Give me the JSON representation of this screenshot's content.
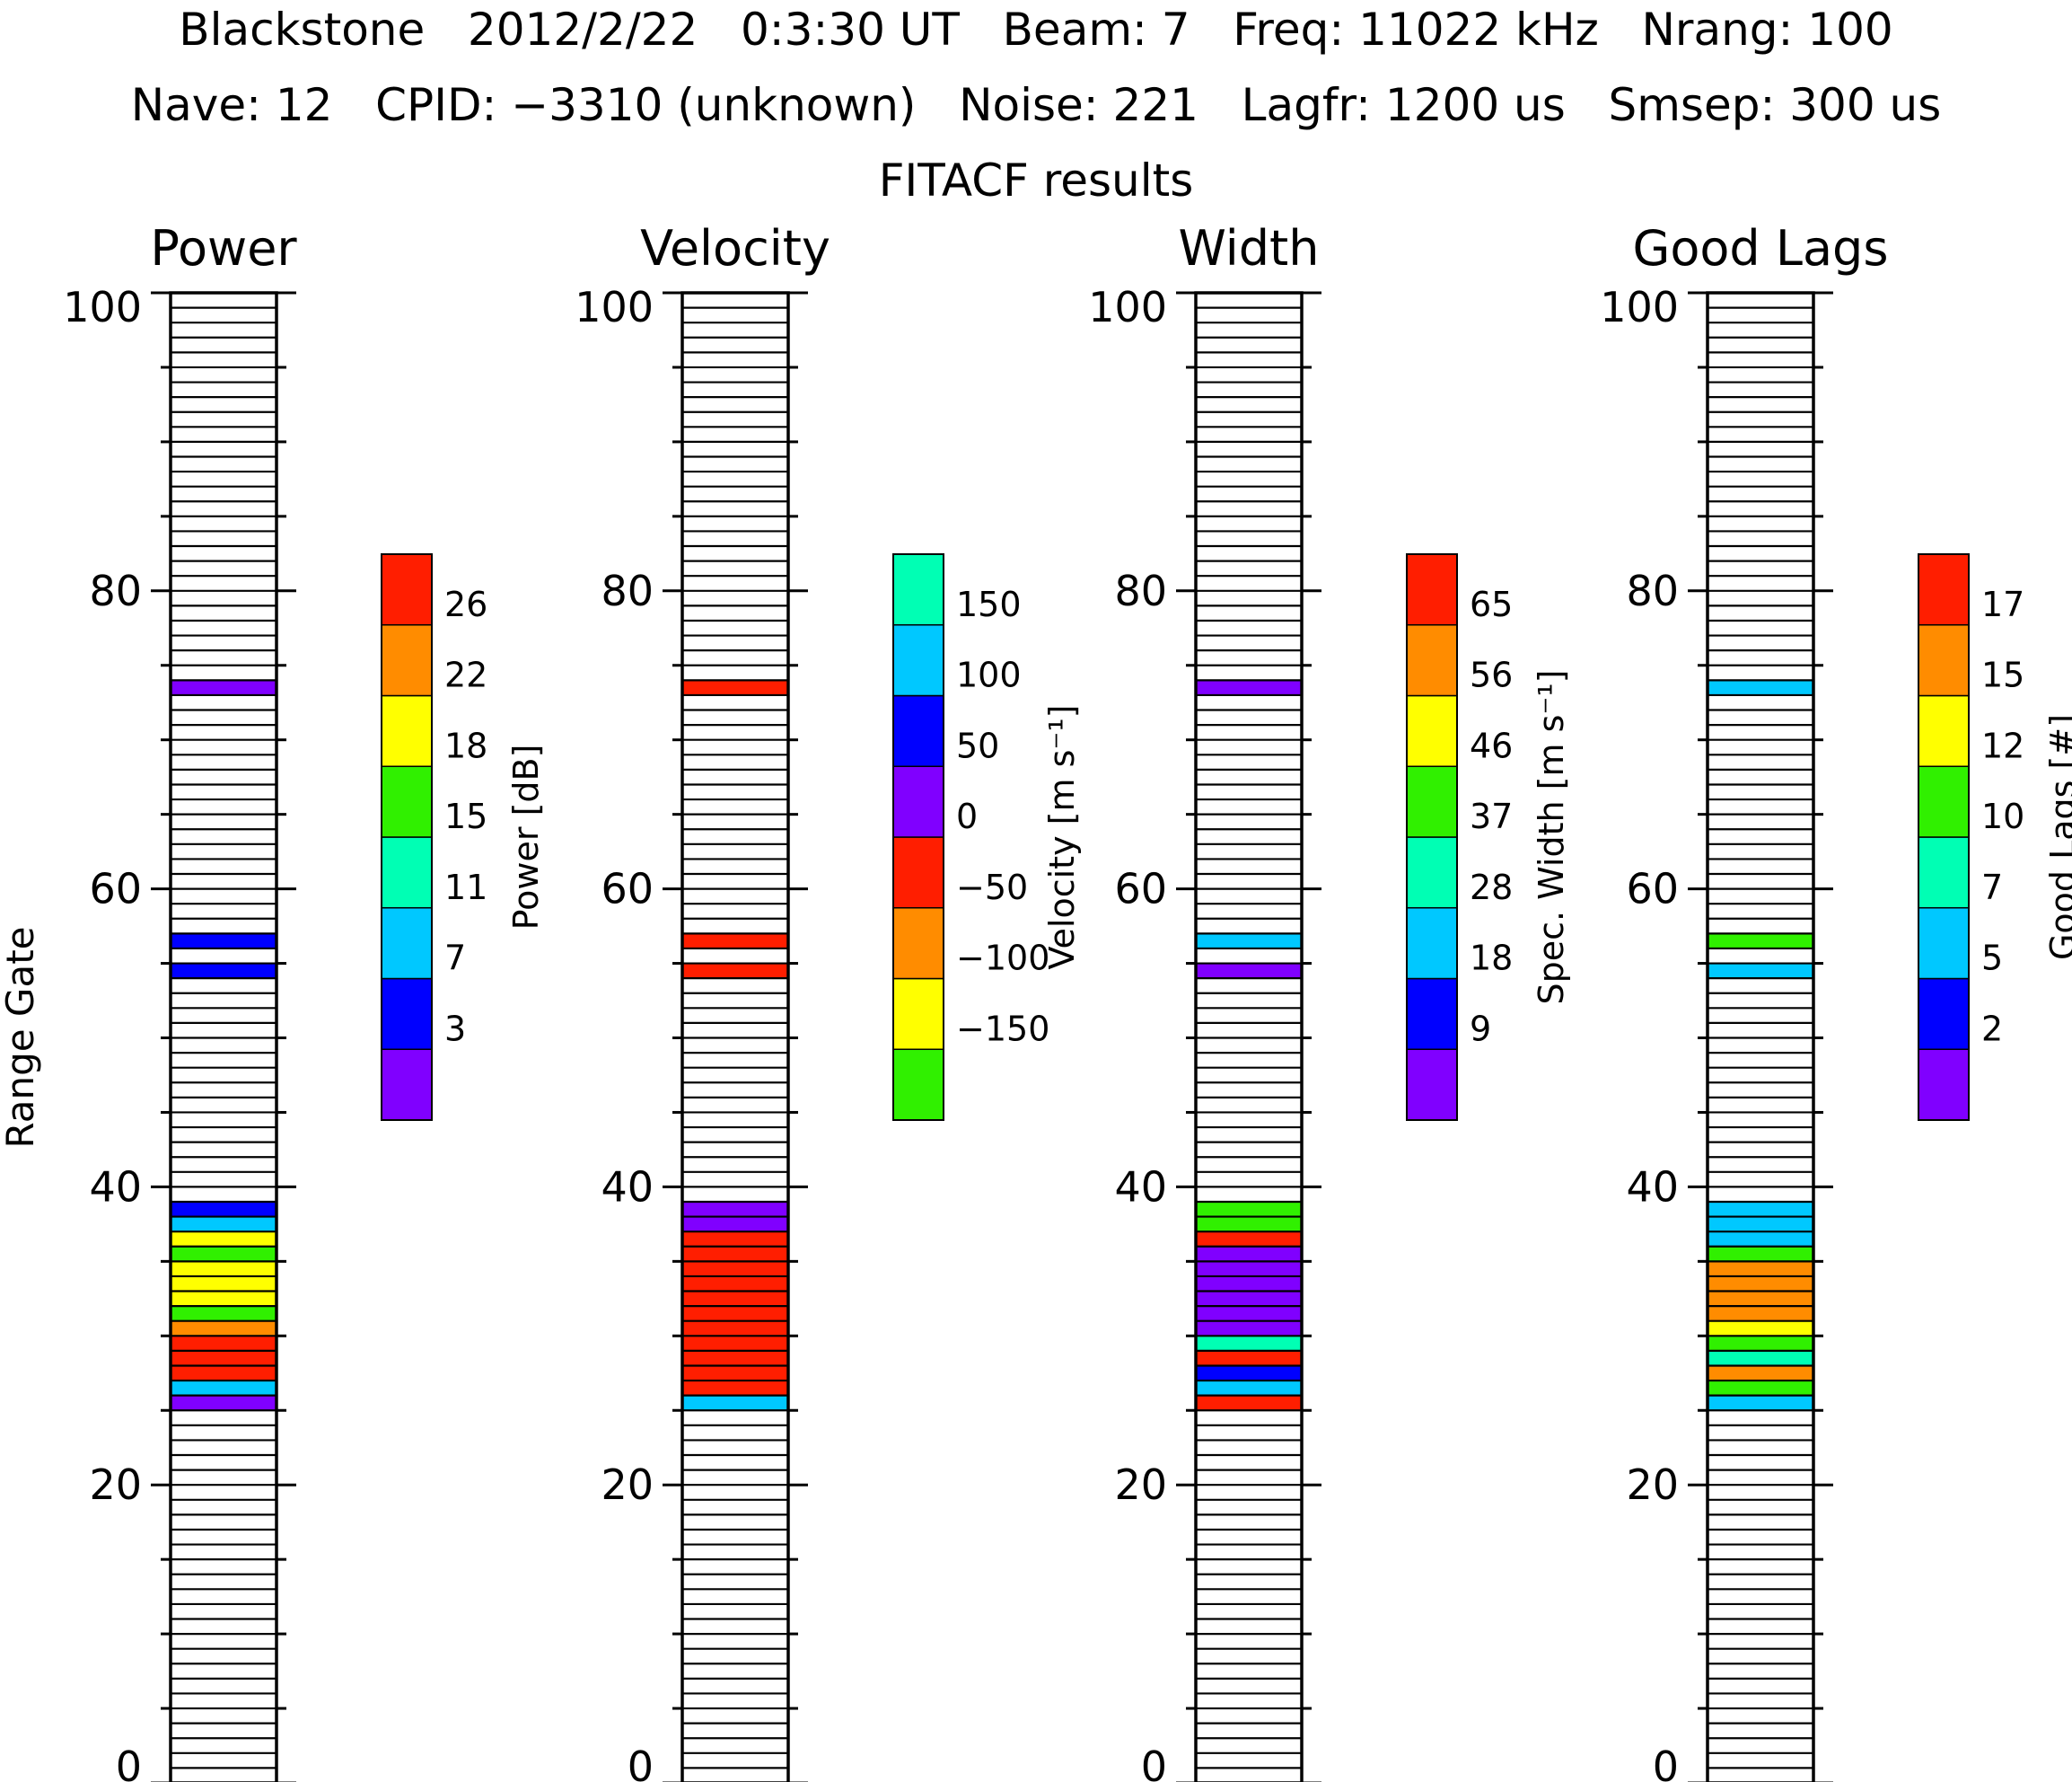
{
  "header": {
    "line1": "Blackstone   2012/2/22   0:3:30 UT   Beam: 7   Freq: 11022 kHz   Nrang: 100",
    "line2": "Nave: 12   CPID: −3310 (unknown)   Noise: 221   Lagfr: 1200 us   Smsep: 300 us",
    "line3": "FITACF results"
  },
  "colors": {
    "purple": "#8000FF",
    "blue": "#0000FF",
    "cyan": "#00C8FF",
    "aqua": "#00FFB4",
    "green": "#30F000",
    "yellow": "#FFFF00",
    "orange": "#FF8C00",
    "red": "#FF1E00"
  },
  "chart_data": [
    {
      "type": "heatmap",
      "title": "Power",
      "ylabel": "Range Gate",
      "ylim": [
        0,
        100
      ],
      "yticks": [
        "0",
        "20",
        "40",
        "60",
        "80",
        "100"
      ],
      "colorbar": {
        "label": "Power [dB]",
        "colors": [
          "purple",
          "blue",
          "cyan",
          "aqua",
          "green",
          "yellow",
          "orange",
          "red"
        ],
        "ticks": [
          "3",
          "7",
          "11",
          "15",
          "18",
          "22",
          "26"
        ]
      },
      "gates": [
        {
          "gate": 25,
          "color": "purple"
        },
        {
          "gate": 26,
          "color": "cyan"
        },
        {
          "gate": 27,
          "color": "red"
        },
        {
          "gate": 28,
          "color": "red"
        },
        {
          "gate": 29,
          "color": "red"
        },
        {
          "gate": 30,
          "color": "orange"
        },
        {
          "gate": 31,
          "color": "green"
        },
        {
          "gate": 32,
          "color": "yellow"
        },
        {
          "gate": 33,
          "color": "yellow"
        },
        {
          "gate": 34,
          "color": "yellow"
        },
        {
          "gate": 35,
          "color": "green"
        },
        {
          "gate": 36,
          "color": "yellow"
        },
        {
          "gate": 37,
          "color": "cyan"
        },
        {
          "gate": 38,
          "color": "blue"
        },
        {
          "gate": 54,
          "color": "blue"
        },
        {
          "gate": 56,
          "color": "blue"
        },
        {
          "gate": 73,
          "color": "purple"
        }
      ]
    },
    {
      "type": "heatmap",
      "title": "Velocity",
      "ylabel": "",
      "ylim": [
        0,
        100
      ],
      "yticks": [
        "0",
        "20",
        "40",
        "60",
        "80",
        "100"
      ],
      "colorbar": {
        "label": "Velocity [m s⁻¹]",
        "colors": [
          "green",
          "yellow",
          "orange",
          "red",
          "purple",
          "blue",
          "cyan",
          "aqua"
        ],
        "ticks": [
          "−150",
          "−100",
          "−50",
          "0",
          "50",
          "100",
          "150"
        ]
      },
      "gates": [
        {
          "gate": 25,
          "color": "cyan"
        },
        {
          "gate": 26,
          "color": "red"
        },
        {
          "gate": 27,
          "color": "red"
        },
        {
          "gate": 28,
          "color": "red"
        },
        {
          "gate": 29,
          "color": "red"
        },
        {
          "gate": 30,
          "color": "red"
        },
        {
          "gate": 31,
          "color": "red"
        },
        {
          "gate": 32,
          "color": "red"
        },
        {
          "gate": 33,
          "color": "red"
        },
        {
          "gate": 34,
          "color": "red"
        },
        {
          "gate": 35,
          "color": "red"
        },
        {
          "gate": 36,
          "color": "red"
        },
        {
          "gate": 37,
          "color": "purple"
        },
        {
          "gate": 38,
          "color": "purple"
        },
        {
          "gate": 54,
          "color": "red"
        },
        {
          "gate": 56,
          "color": "red"
        },
        {
          "gate": 73,
          "color": "red"
        }
      ]
    },
    {
      "type": "heatmap",
      "title": "Width",
      "ylabel": "",
      "ylim": [
        0,
        100
      ],
      "yticks": [
        "0",
        "20",
        "40",
        "60",
        "80",
        "100"
      ],
      "colorbar": {
        "label": "Spec. Width [m s⁻¹]",
        "colors": [
          "purple",
          "blue",
          "cyan",
          "aqua",
          "green",
          "yellow",
          "orange",
          "red"
        ],
        "ticks": [
          "9",
          "18",
          "28",
          "37",
          "46",
          "56",
          "65"
        ]
      },
      "gates": [
        {
          "gate": 25,
          "color": "red"
        },
        {
          "gate": 26,
          "color": "cyan"
        },
        {
          "gate": 27,
          "color": "blue"
        },
        {
          "gate": 28,
          "color": "red"
        },
        {
          "gate": 29,
          "color": "aqua"
        },
        {
          "gate": 30,
          "color": "purple"
        },
        {
          "gate": 31,
          "color": "purple"
        },
        {
          "gate": 32,
          "color": "purple"
        },
        {
          "gate": 33,
          "color": "purple"
        },
        {
          "gate": 34,
          "color": "purple"
        },
        {
          "gate": 35,
          "color": "purple"
        },
        {
          "gate": 36,
          "color": "red"
        },
        {
          "gate": 37,
          "color": "green"
        },
        {
          "gate": 38,
          "color": "green"
        },
        {
          "gate": 54,
          "color": "purple"
        },
        {
          "gate": 56,
          "color": "cyan"
        },
        {
          "gate": 73,
          "color": "purple"
        }
      ]
    },
    {
      "type": "heatmap",
      "title": "Good Lags",
      "ylabel": "",
      "ylim": [
        0,
        100
      ],
      "yticks": [
        "0",
        "20",
        "40",
        "60",
        "80",
        "100"
      ],
      "colorbar": {
        "label": "Good Lags [#]",
        "colors": [
          "purple",
          "blue",
          "cyan",
          "aqua",
          "green",
          "yellow",
          "orange",
          "red"
        ],
        "ticks": [
          "2",
          "5",
          "7",
          "10",
          "12",
          "15",
          "17"
        ]
      },
      "gates": [
        {
          "gate": 25,
          "color": "cyan"
        },
        {
          "gate": 26,
          "color": "green"
        },
        {
          "gate": 27,
          "color": "orange"
        },
        {
          "gate": 28,
          "color": "aqua"
        },
        {
          "gate": 29,
          "color": "green"
        },
        {
          "gate": 30,
          "color": "yellow"
        },
        {
          "gate": 31,
          "color": "orange"
        },
        {
          "gate": 32,
          "color": "orange"
        },
        {
          "gate": 33,
          "color": "orange"
        },
        {
          "gate": 34,
          "color": "orange"
        },
        {
          "gate": 35,
          "color": "green"
        },
        {
          "gate": 36,
          "color": "cyan"
        },
        {
          "gate": 37,
          "color": "cyan"
        },
        {
          "gate": 38,
          "color": "cyan"
        },
        {
          "gate": 54,
          "color": "cyan"
        },
        {
          "gate": 56,
          "color": "green"
        },
        {
          "gate": 73,
          "color": "cyan"
        }
      ]
    }
  ]
}
